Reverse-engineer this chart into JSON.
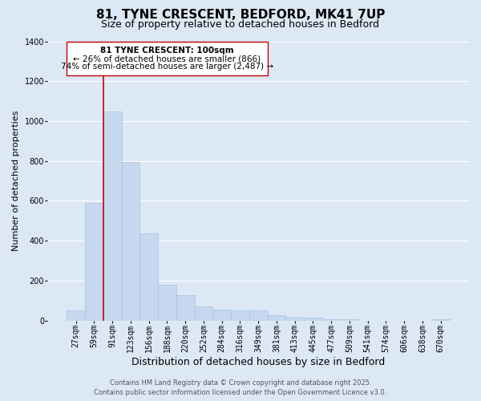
{
  "title": "81, TYNE CRESCENT, BEDFORD, MK41 7UP",
  "subtitle": "Size of property relative to detached houses in Bedford",
  "xlabel": "Distribution of detached houses by size in Bedford",
  "ylabel": "Number of detached properties",
  "categories": [
    "27sqm",
    "59sqm",
    "91sqm",
    "123sqm",
    "156sqm",
    "188sqm",
    "220sqm",
    "252sqm",
    "284sqm",
    "316sqm",
    "349sqm",
    "381sqm",
    "413sqm",
    "445sqm",
    "477sqm",
    "509sqm",
    "541sqm",
    "574sqm",
    "606sqm",
    "638sqm",
    "670sqm"
  ],
  "values": [
    50,
    590,
    1050,
    795,
    435,
    180,
    125,
    70,
    55,
    50,
    50,
    25,
    20,
    15,
    8,
    5,
    0,
    0,
    0,
    0,
    5
  ],
  "bar_color": "#c5d8f0",
  "bar_edge_color": "#a8c4e0",
  "background_color": "#dde8f5",
  "grid_color": "#ffffff",
  "ylim": [
    0,
    1400
  ],
  "yticks": [
    0,
    200,
    400,
    600,
    800,
    1000,
    1200,
    1400
  ],
  "red_line_color": "#cc0000",
  "annotation_title": "81 TYNE CRESCENT: 100sqm",
  "annotation_line1": "← 26% of detached houses are smaller (866)",
  "annotation_line2": "74% of semi-detached houses are larger (2,487) →",
  "footer1": "Contains HM Land Registry data © Crown copyright and database right 2025.",
  "footer2": "Contains public sector information licensed under the Open Government Licence v3.0.",
  "title_fontsize": 11,
  "subtitle_fontsize": 9,
  "xlabel_fontsize": 9,
  "ylabel_fontsize": 8,
  "tick_fontsize": 7,
  "footer_fontsize": 6
}
